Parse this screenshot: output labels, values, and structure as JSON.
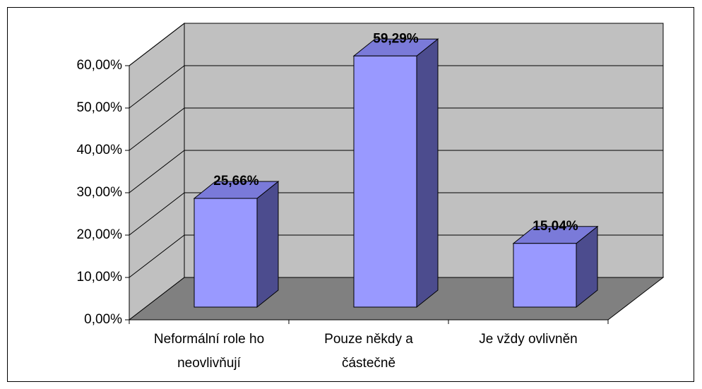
{
  "chart_data": {
    "type": "bar3d",
    "categories": [
      "Neformální role ho neovlivňují",
      "Pouze někdy a částečně",
      "Je vždy ovlivněn"
    ],
    "values": [
      25.66,
      59.29,
      15.04
    ],
    "value_labels": [
      "25,66%",
      "59,29%",
      "15,04%"
    ],
    "color": "#9999ff",
    "ylim": [
      0,
      60
    ],
    "yticks": [
      {
        "value": 0,
        "label": "0,00%"
      },
      {
        "value": 10,
        "label": "10,00%"
      },
      {
        "value": 20,
        "label": "20,00%"
      },
      {
        "value": 30,
        "label": "30,00%"
      },
      {
        "value": 40,
        "label": "40,00%"
      },
      {
        "value": 50,
        "label": "50,00%"
      },
      {
        "value": 60,
        "label": "60,00%"
      }
    ],
    "grid": true
  }
}
